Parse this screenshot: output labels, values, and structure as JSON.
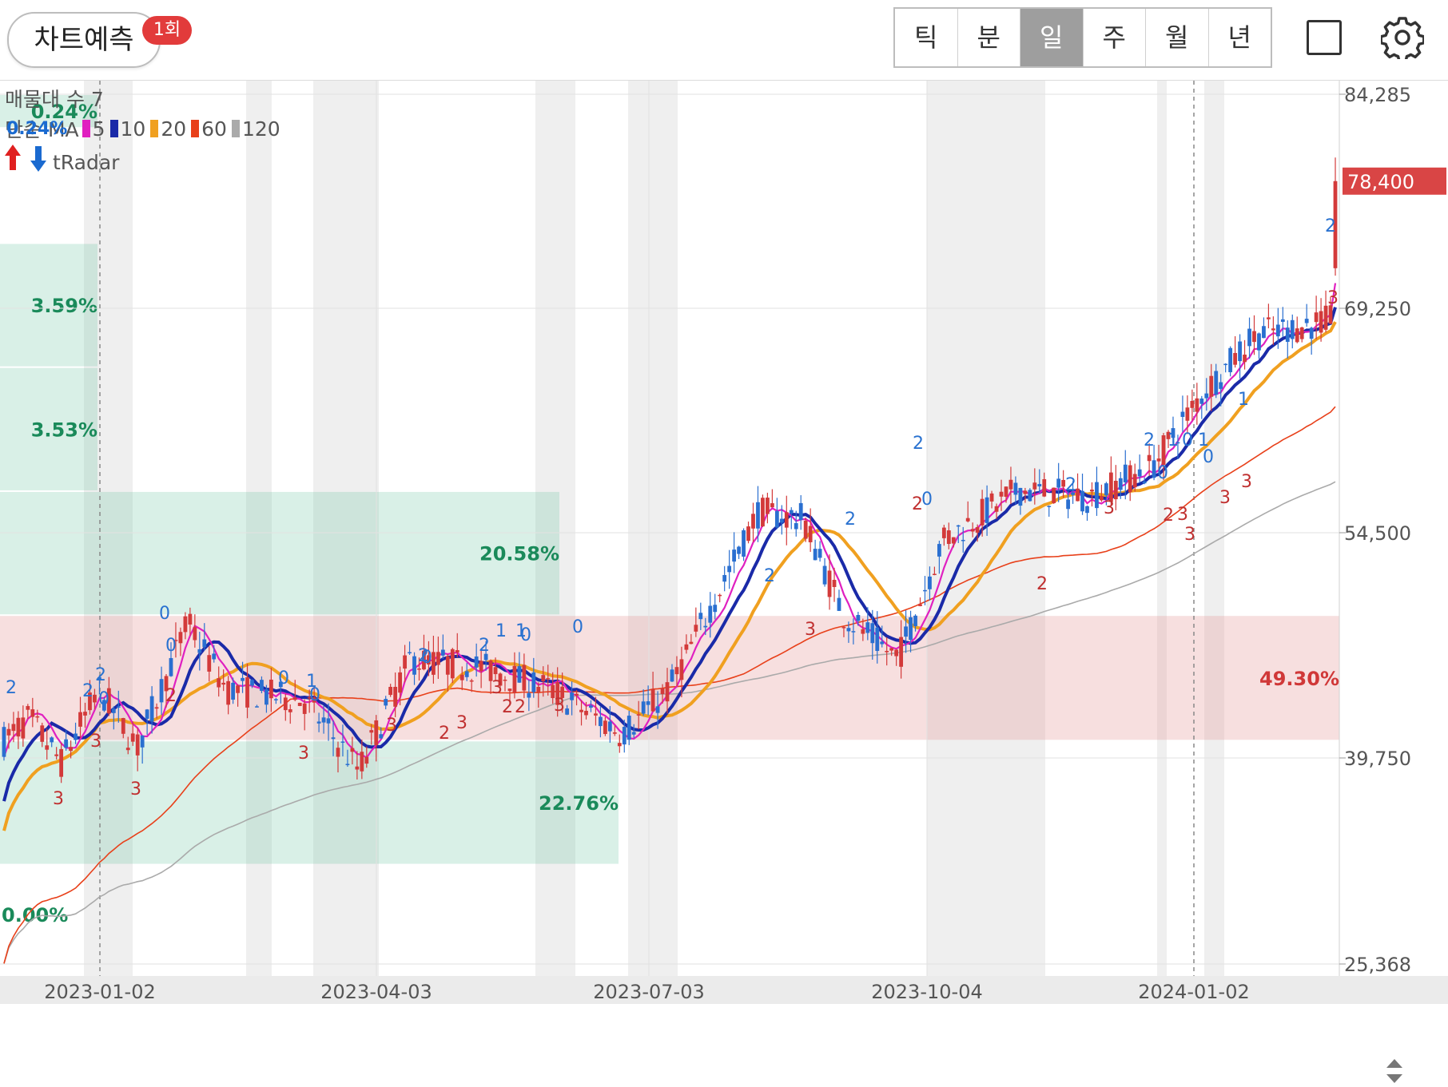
{
  "toolbar": {
    "predict_label": "차트예측",
    "predict_badge": "1회",
    "periods": [
      "틱",
      "분",
      "일",
      "주",
      "월",
      "년"
    ],
    "active_period": "일",
    "icons": [
      "square-icon",
      "gear-icon"
    ]
  },
  "overlay": {
    "volume_profile_label": "매물대 수 7",
    "ma_prefix": "단순 MA",
    "ma_periods": [
      {
        "period": "5",
        "color": "#e020c0"
      },
      {
        "period": "10",
        "color": "#1a2aa8"
      },
      {
        "period": "20",
        "color": "#f0a020"
      },
      {
        "period": "60",
        "color": "#e8401a"
      },
      {
        "period": "120",
        "color": "#aaaaaa"
      }
    ],
    "radar_label": "tRadar",
    "radar_pct": "0.24%"
  },
  "chart_data": {
    "type": "candlestick",
    "y_ticks": [
      "84,285",
      "69,250",
      "54,500",
      "39,750",
      "25,368"
    ],
    "y_range": [
      25368,
      84285
    ],
    "x_ticks": [
      "2023-01-02",
      "2023-04-03",
      "2023-07-03",
      "2023-10-04",
      "2024-01-02"
    ],
    "current_price": "78,400",
    "colors": {
      "up": "#d33a3a",
      "down": "#2a6fd0",
      "ma5": "#e020c0",
      "ma10": "#1a2aa8",
      "ma20": "#f0a020",
      "ma60": "#e8401a",
      "ma120": "#aaaaaa"
    },
    "volume_profile": [
      {
        "label": "0.24%",
        "low": 82000,
        "high": 84285,
        "type": "support"
      },
      {
        "label": "3.59%",
        "low": 65800,
        "high": 74200,
        "type": "support"
      },
      {
        "label": "3.53%",
        "low": 57400,
        "high": 65800,
        "type": "support"
      },
      {
        "label": "20.58%",
        "low": 49000,
        "high": 57400,
        "type": "support"
      },
      {
        "label": "49.30%",
        "low": 40500,
        "high": 49000,
        "type": "resistance"
      },
      {
        "label": "22.76%",
        "low": 32100,
        "high": 40500,
        "type": "support"
      },
      {
        "label": "0.00%",
        "low": 25368,
        "high": 32100,
        "type": "support"
      }
    ],
    "signal_labels": [
      {
        "text": "2",
        "kind": "up"
      },
      {
        "text": "2",
        "kind": "up"
      },
      {
        "text": "2",
        "kind": "up"
      },
      {
        "text": "0",
        "kind": "up"
      },
      {
        "text": "3",
        "kind": "down"
      },
      {
        "text": "3",
        "kind": "down"
      },
      {
        "text": "3",
        "kind": "down"
      },
      {
        "text": "0",
        "kind": "up"
      },
      {
        "text": "0",
        "kind": "up"
      },
      {
        "text": "2",
        "kind": "down"
      },
      {
        "text": "0",
        "kind": "up"
      },
      {
        "text": "1",
        "kind": "up"
      },
      {
        "text": "0",
        "kind": "up"
      },
      {
        "text": "3",
        "kind": "down"
      },
      {
        "text": "3",
        "kind": "down"
      },
      {
        "text": "2",
        "kind": "up"
      },
      {
        "text": "0",
        "kind": "up"
      },
      {
        "text": "2",
        "kind": "down"
      },
      {
        "text": "3",
        "kind": "down"
      },
      {
        "text": "2",
        "kind": "up"
      },
      {
        "text": "1",
        "kind": "up"
      },
      {
        "text": "1",
        "kind": "up"
      },
      {
        "text": "0",
        "kind": "up"
      },
      {
        "text": "3",
        "kind": "down"
      },
      {
        "text": "2",
        "kind": "down"
      },
      {
        "text": "2",
        "kind": "down"
      },
      {
        "text": "3",
        "kind": "down"
      },
      {
        "text": "0",
        "kind": "up"
      },
      {
        "text": "2",
        "kind": "up"
      },
      {
        "text": "3",
        "kind": "down"
      },
      {
        "text": "2",
        "kind": "up"
      },
      {
        "text": "2",
        "kind": "up"
      },
      {
        "text": "0",
        "kind": "up"
      },
      {
        "text": "2",
        "kind": "down"
      },
      {
        "text": "2",
        "kind": "down"
      },
      {
        "text": "2",
        "kind": "up"
      },
      {
        "text": "3",
        "kind": "down"
      },
      {
        "text": "2",
        "kind": "up"
      },
      {
        "text": "0",
        "kind": "up"
      },
      {
        "text": "1",
        "kind": "up"
      },
      {
        "text": "0",
        "kind": "up"
      },
      {
        "text": "1",
        "kind": "up"
      },
      {
        "text": "0",
        "kind": "up"
      },
      {
        "text": "2",
        "kind": "down"
      },
      {
        "text": "3",
        "kind": "down"
      },
      {
        "text": "3",
        "kind": "down"
      },
      {
        "text": "3",
        "kind": "down"
      },
      {
        "text": "3",
        "kind": "down"
      },
      {
        "text": "1",
        "kind": "up"
      },
      {
        "text": "2",
        "kind": "up"
      },
      {
        "text": "3",
        "kind": "down"
      }
    ]
  }
}
